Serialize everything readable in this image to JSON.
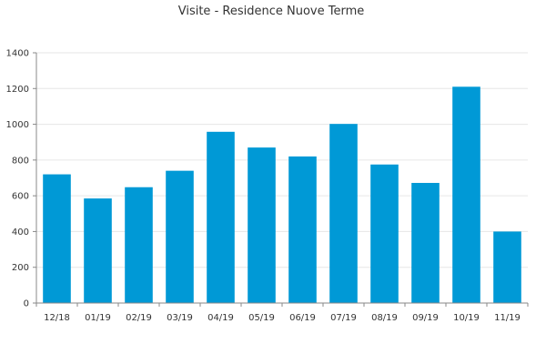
{
  "chart_data": {
    "type": "bar",
    "title": "Visite - Residence Nuove Terme",
    "xlabel": "",
    "ylabel": "",
    "categories": [
      "12/18",
      "01/19",
      "02/19",
      "03/19",
      "04/19",
      "05/19",
      "06/19",
      "07/19",
      "08/19",
      "09/19",
      "10/19",
      "11/19"
    ],
    "values": [
      720,
      585,
      648,
      740,
      958,
      870,
      820,
      1002,
      775,
      672,
      1210,
      400
    ],
    "ylim": [
      0,
      1400
    ],
    "yticks": [
      0,
      200,
      400,
      600,
      800,
      1000,
      1200,
      1400
    ],
    "grid": true,
    "legend": "none",
    "bar_color": "#0099d6"
  }
}
